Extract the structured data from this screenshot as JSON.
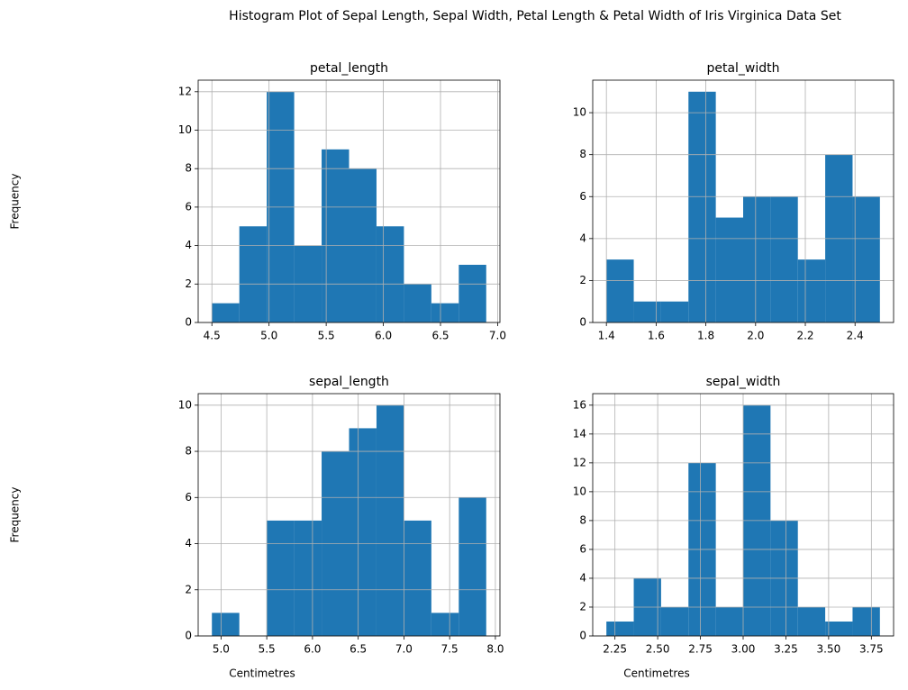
{
  "title": "Histogram Plot of Sepal Length, Sepal Width, Petal Length & Petal Width of Iris Virginica Data Set",
  "chart_data": [
    {
      "type": "histogram",
      "title": "petal_length",
      "ylabel": "Frequency",
      "color": "#1f77b4",
      "grid": true,
      "bins": [
        4.5,
        4.74,
        4.98,
        5.22,
        5.46,
        5.7,
        5.94,
        6.18,
        6.42,
        6.66,
        6.9
      ],
      "values": [
        1,
        5,
        12,
        4,
        9,
        8,
        5,
        2,
        1,
        3
      ],
      "xlim": [
        4.38,
        7.02
      ],
      "xticks": [
        4.5,
        {
          "value": 5,
          "label": "5.0"
        },
        5.5,
        {
          "value": 6,
          "label": "6.0"
        },
        6.5,
        {
          "value": 7,
          "label": "7.0"
        }
      ],
      "ylim": [
        0,
        12.6
      ],
      "yticks": [
        0,
        2,
        4,
        6,
        8,
        10,
        12
      ]
    },
    {
      "type": "histogram",
      "title": "petal_width",
      "color": "#1f77b4",
      "grid": true,
      "bins": [
        1.4,
        1.51,
        1.62,
        1.73,
        1.84,
        1.95,
        2.06,
        2.17,
        2.28,
        2.39,
        2.5
      ],
      "values": [
        3,
        1,
        1,
        11,
        5,
        6,
        6,
        3,
        8,
        6
      ],
      "xlim": [
        1.345,
        2.555
      ],
      "xticks": [
        1.4,
        1.6,
        1.8,
        {
          "value": 2,
          "label": "2.0"
        },
        2.2,
        2.4
      ],
      "ylim": [
        0,
        11.55
      ],
      "yticks": [
        0,
        2,
        4,
        6,
        8,
        10
      ]
    },
    {
      "type": "histogram",
      "title": "sepal_length",
      "ylabel": "Frequency",
      "xlabel": "Centimetres",
      "color": "#1f77b4",
      "grid": true,
      "bins": [
        4.9,
        5.2,
        5.5,
        5.8,
        6.1,
        6.4,
        6.7,
        7.0,
        7.3,
        7.6,
        7.9
      ],
      "values": [
        1,
        0,
        5,
        5,
        8,
        9,
        10,
        5,
        1,
        6
      ],
      "xlim": [
        4.75,
        8.05
      ],
      "xticks": [
        {
          "value": 5,
          "label": "5.0"
        },
        5.5,
        {
          "value": 6,
          "label": "6.0"
        },
        6.5,
        {
          "value": 7,
          "label": "7.0"
        },
        7.5,
        {
          "value": 8,
          "label": "8.0"
        }
      ],
      "ylim": [
        0,
        10.5
      ],
      "yticks": [
        0,
        2,
        4,
        6,
        8,
        10
      ]
    },
    {
      "type": "histogram",
      "title": "sepal_width",
      "xlabel": "Centimetres",
      "color": "#1f77b4",
      "grid": true,
      "bins": [
        2.2,
        2.36,
        2.52,
        2.68,
        2.84,
        3.0,
        3.16,
        3.32,
        3.48,
        3.64,
        3.8
      ],
      "values": [
        1,
        4,
        2,
        12,
        2,
        16,
        8,
        2,
        1,
        2
      ],
      "xlim": [
        2.12,
        3.88
      ],
      "xticks": [
        2.25,
        {
          "value": 2.5,
          "label": "2.50"
        },
        2.75,
        {
          "value": 3,
          "label": "3.00"
        },
        3.25,
        {
          "value": 3.5,
          "label": "3.50"
        },
        3.75
      ],
      "ylim": [
        0,
        16.8
      ],
      "yticks": [
        0,
        2,
        4,
        6,
        8,
        10,
        12,
        14,
        16
      ]
    }
  ]
}
